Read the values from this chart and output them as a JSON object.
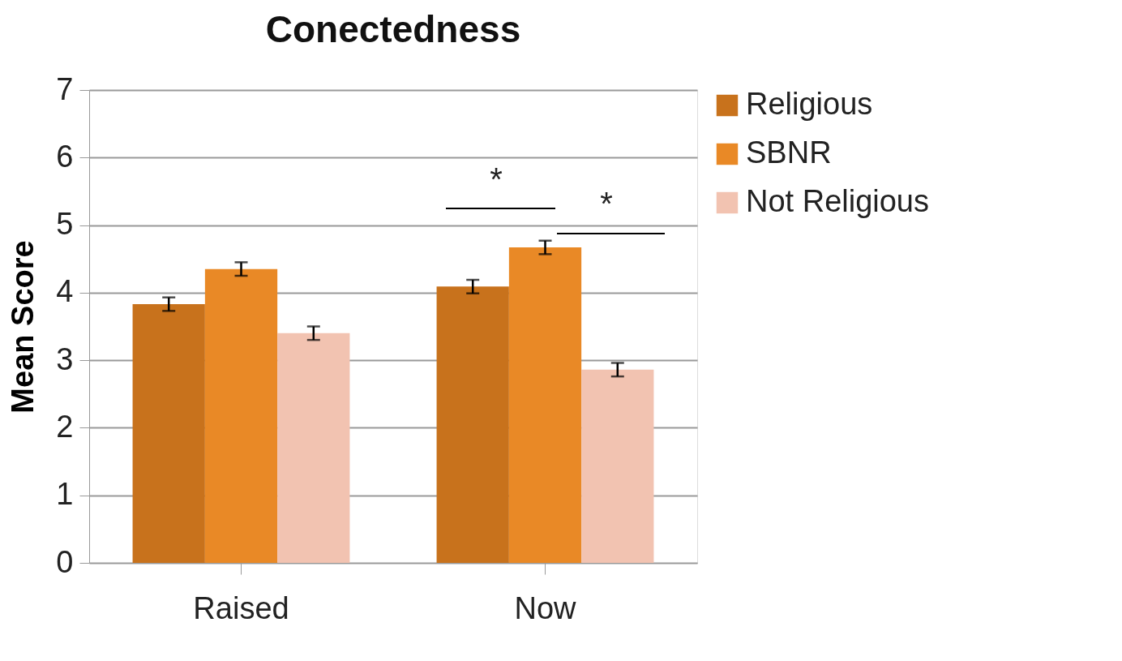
{
  "chart_data": {
    "type": "bar",
    "title": "Conectedness",
    "ylabel": "Mean Score",
    "categories": [
      "Raised",
      "Now"
    ],
    "series": [
      {
        "name": "Religious",
        "color": "#c8721c",
        "values": [
          3.83,
          4.09
        ],
        "errors": [
          0.1,
          0.1
        ]
      },
      {
        "name": "SBNR",
        "color": "#e98926",
        "values": [
          4.35,
          4.67
        ],
        "errors": [
          0.1,
          0.1
        ]
      },
      {
        "name": "Not Religious",
        "color": "#f2c3b1",
        "values": [
          3.4,
          2.86
        ],
        "errors": [
          0.1,
          0.1
        ]
      }
    ],
    "ylim": [
      0,
      7
    ],
    "yticks": [
      0,
      1,
      2,
      3,
      4,
      5,
      6,
      7
    ],
    "grid": "y",
    "legend": "right",
    "annotations": [
      "*",
      "*"
    ]
  }
}
